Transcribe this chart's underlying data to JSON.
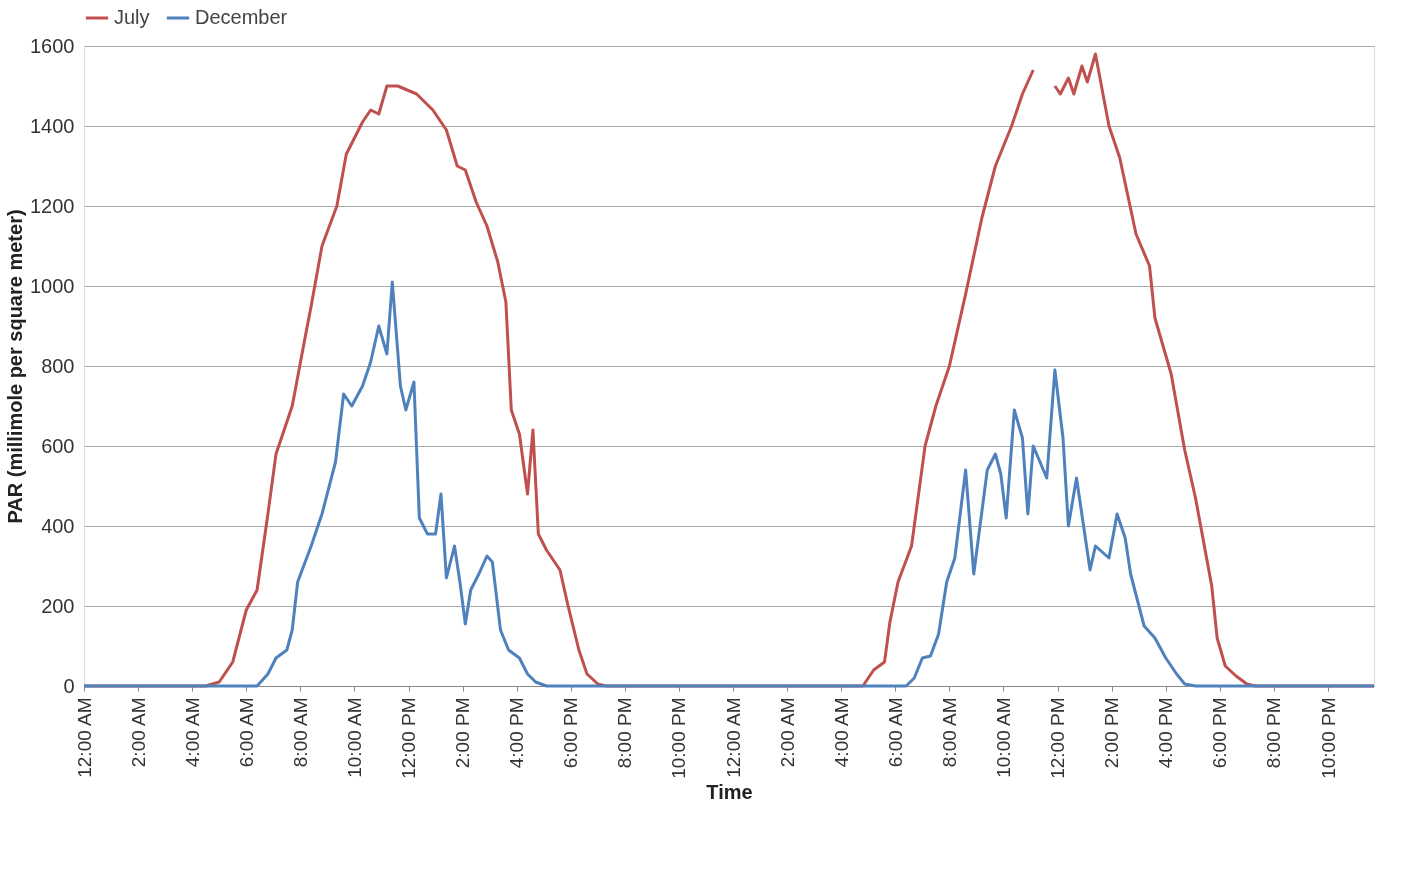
{
  "chart_data": {
    "type": "line",
    "xlabel": "Time",
    "ylabel": "PAR (millimole per square meter)",
    "xlim": [
      "2000-01-01T00:00",
      "2000-01-02T23:42"
    ],
    "ylim": [
      0,
      1600
    ],
    "yticks": [
      0,
      200,
      400,
      600,
      800,
      1000,
      1200,
      1400,
      1600
    ],
    "xticks": [
      {
        "value": "2000-01-01T00:00",
        "label": "12:00 AM"
      },
      {
        "value": "2000-01-01T02:00",
        "label": "2:00 AM"
      },
      {
        "value": "2000-01-01T04:00",
        "label": "4:00 AM"
      },
      {
        "value": "2000-01-01T06:00",
        "label": "6:00 AM"
      },
      {
        "value": "2000-01-01T08:00",
        "label": "8:00 AM"
      },
      {
        "value": "2000-01-01T10:00",
        "label": "10:00 AM"
      },
      {
        "value": "2000-01-01T12:00",
        "label": "12:00 PM"
      },
      {
        "value": "2000-01-01T14:00",
        "label": "2:00 PM"
      },
      {
        "value": "2000-01-01T16:00",
        "label": "4:00 PM"
      },
      {
        "value": "2000-01-01T18:00",
        "label": "6:00 PM"
      },
      {
        "value": "2000-01-01T20:00",
        "label": "8:00 PM"
      },
      {
        "value": "2000-01-01T22:00",
        "label": "10:00 PM"
      },
      {
        "value": "2000-01-02T00:00",
        "label": "12:00 AM"
      },
      {
        "value": "2000-01-02T02:00",
        "label": "2:00 AM"
      },
      {
        "value": "2000-01-02T04:00",
        "label": "4:00 AM"
      },
      {
        "value": "2000-01-02T06:00",
        "label": "6:00 AM"
      },
      {
        "value": "2000-01-02T08:00",
        "label": "8:00 AM"
      },
      {
        "value": "2000-01-02T10:00",
        "label": "10:00 AM"
      },
      {
        "value": "2000-01-02T12:00",
        "label": "12:00 PM"
      },
      {
        "value": "2000-01-02T14:00",
        "label": "2:00 PM"
      },
      {
        "value": "2000-01-02T16:00",
        "label": "4:00 PM"
      },
      {
        "value": "2000-01-02T18:00",
        "label": "6:00 PM"
      },
      {
        "value": "2000-01-02T20:00",
        "label": "8:00 PM"
      },
      {
        "value": "2000-01-02T22:00",
        "label": "10:00 PM"
      }
    ],
    "grid": "y",
    "legend": "top",
    "marker": "none",
    "line_style": "solid",
    "series": [
      {
        "name": "July",
        "color": "#c0504d",
        "x": [
          "2000-01-01T00:00",
          "2000-01-01T04:30",
          "2000-01-01T05:00",
          "2000-01-01T05:30",
          "2000-01-01T06:00",
          "2000-01-01T06:24",
          "2000-01-01T06:48",
          "2000-01-01T07:06",
          "2000-01-01T07:42",
          "2000-01-01T08:12",
          "2000-01-01T08:24",
          "2000-01-01T08:48",
          "2000-01-01T09:21",
          "2000-01-01T09:42",
          "2000-01-01T10:18",
          "2000-01-01T10:36",
          "2000-01-01T10:54",
          "2000-01-01T11:12",
          "2000-01-01T11:36",
          "2000-01-01T12:18",
          "2000-01-01T12:54",
          "2000-01-01T13:24",
          "2000-01-01T13:48",
          "2000-01-01T14:06",
          "2000-01-01T14:30",
          "2000-01-01T14:54",
          "2000-01-01T15:18",
          "2000-01-01T15:36",
          "2000-01-01T15:48",
          "2000-01-01T16:06",
          "2000-01-01T16:24",
          "2000-01-01T16:36",
          "2000-01-01T16:48",
          "2000-01-01T17:06",
          "2000-01-01T17:36",
          "2000-01-01T17:54",
          "2000-01-01T18:18",
          "2000-01-01T18:36",
          "2000-01-01T19:00",
          "2000-01-01T19:18",
          "2000-01-02T04:48",
          "2000-01-02T05:12",
          "2000-01-02T05:36",
          "2000-01-02T05:48",
          "2000-01-02T06:06",
          "2000-01-02T06:36",
          "2000-01-02T07:06",
          "2000-01-02T07:30",
          "2000-01-02T08:00",
          "2000-01-02T08:36",
          "2000-01-02T09:12",
          "2000-01-02T09:42",
          "2000-01-02T10:18",
          "2000-01-02T10:42",
          "2000-01-02T11:06",
          "2000-01-02T11:30",
          "2000-01-02T11:54",
          "2000-01-02T12:06",
          "2000-01-02T12:24",
          "2000-01-02T12:36",
          "2000-01-02T12:54",
          "2000-01-02T13:06",
          "2000-01-02T13:24",
          "2000-01-02T13:54",
          "2000-01-02T14:18",
          "2000-01-02T14:54",
          "2000-01-02T15:24",
          "2000-01-02T15:36",
          "2000-01-02T16:12",
          "2000-01-02T16:42",
          "2000-01-02T17:06",
          "2000-01-02T17:42",
          "2000-01-02T17:54",
          "2000-01-02T18:12",
          "2000-01-02T18:36",
          "2000-01-02T19:00",
          "2000-01-02T19:18",
          "2000-01-02T23:42"
        ],
        "values": [
          0,
          0,
          10,
          60,
          190,
          240,
          430,
          580,
          700,
          880,
          950,
          1100,
          1200,
          1330,
          1410,
          1440,
          1430,
          1500,
          1500,
          1480,
          1440,
          1390,
          1300,
          1290,
          1210,
          1150,
          1060,
          960,
          690,
          630,
          480,
          640,
          380,
          340,
          290,
          200,
          90,
          30,
          5,
          0,
          0,
          40,
          60,
          160,
          260,
          350,
          600,
          700,
          800,
          980,
          1170,
          1300,
          1400,
          1480,
          1540,
          null,
          1500,
          1480,
          1520,
          1480,
          1550,
          1510,
          1580,
          1400,
          1320,
          1130,
          1050,
          920,
          780,
          590,
          470,
          250,
          120,
          50,
          25,
          5,
          0,
          0
        ]
      },
      {
        "name": "December",
        "color": "#4f81bd",
        "x": [
          "2000-01-01T00:00",
          "2000-01-01T06:24",
          "2000-01-01T06:48",
          "2000-01-01T07:06",
          "2000-01-01T07:30",
          "2000-01-01T07:42",
          "2000-01-01T07:54",
          "2000-01-01T08:24",
          "2000-01-01T08:48",
          "2000-01-01T09:18",
          "2000-01-01T09:36",
          "2000-01-01T09:54",
          "2000-01-01T10:18",
          "2000-01-01T10:36",
          "2000-01-01T10:54",
          "2000-01-01T11:12",
          "2000-01-01T11:24",
          "2000-01-01T11:42",
          "2000-01-01T11:54",
          "2000-01-01T12:12",
          "2000-01-01T12:24",
          "2000-01-01T12:42",
          "2000-01-01T13:00",
          "2000-01-01T13:12",
          "2000-01-01T13:24",
          "2000-01-01T13:42",
          "2000-01-01T13:54",
          "2000-01-01T14:06",
          "2000-01-01T14:18",
          "2000-01-01T14:36",
          "2000-01-01T14:54",
          "2000-01-01T15:06",
          "2000-01-01T15:24",
          "2000-01-01T15:42",
          "2000-01-01T16:06",
          "2000-01-01T16:24",
          "2000-01-01T16:42",
          "2000-01-01T17:06",
          "2000-01-02T06:24",
          "2000-01-02T06:42",
          "2000-01-02T07:00",
          "2000-01-02T07:18",
          "2000-01-02T07:36",
          "2000-01-02T07:54",
          "2000-01-02T08:12",
          "2000-01-02T08:36",
          "2000-01-02T08:54",
          "2000-01-02T09:24",
          "2000-01-02T09:42",
          "2000-01-02T09:54",
          "2000-01-02T10:06",
          "2000-01-02T10:24",
          "2000-01-02T10:42",
          "2000-01-02T10:54",
          "2000-01-02T11:06",
          "2000-01-02T11:36",
          "2000-01-02T11:54",
          "2000-01-02T12:12",
          "2000-01-02T12:24",
          "2000-01-02T12:42",
          "2000-01-02T13:12",
          "2000-01-02T13:24",
          "2000-01-02T13:54",
          "2000-01-02T14:12",
          "2000-01-02T14:30",
          "2000-01-02T14:42",
          "2000-01-02T15:12",
          "2000-01-02T15:36",
          "2000-01-02T16:00",
          "2000-01-02T16:24",
          "2000-01-02T16:42",
          "2000-01-02T17:06",
          "2000-01-02T23:42"
        ],
        "values": [
          0,
          0,
          30,
          70,
          90,
          140,
          260,
          350,
          430,
          560,
          730,
          700,
          750,
          810,
          900,
          830,
          1010,
          750,
          690,
          760,
          420,
          380,
          380,
          480,
          270,
          350,
          260,
          155,
          240,
          280,
          325,
          310,
          140,
          90,
          70,
          30,
          10,
          0,
          0,
          20,
          70,
          75,
          130,
          260,
          320,
          540,
          280,
          540,
          580,
          530,
          420,
          690,
          620,
          430,
          600,
          520,
          790,
          620,
          400,
          520,
          290,
          350,
          320,
          430,
          370,
          280,
          150,
          120,
          70,
          30,
          5,
          0,
          0
        ]
      }
    ]
  }
}
